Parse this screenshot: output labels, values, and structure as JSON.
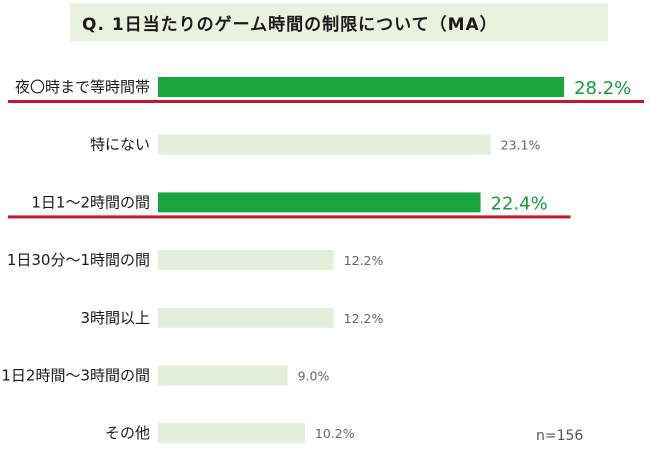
{
  "title": "Q. 1日当たりのゲーム時間の制限について（MA）",
  "sample_size": "n=156",
  "colors": {
    "highlight_bar": "#18a53d",
    "normal_bar": "#e3efdb",
    "underline": "#c0192f",
    "highlight_text": "#1a9a3c",
    "title_bg": "#e8f2df"
  },
  "chart_data": {
    "type": "bar",
    "orientation": "horizontal",
    "title": "Q. 1日当たりのゲーム時間の制限について（MA）",
    "categories": [
      "夜〇時まで等時間帯",
      "特にない",
      "1日1～2時間の間",
      "1日30分～1時間の間",
      "3時間以上",
      "1日2時間～3時間の間",
      "その他"
    ],
    "values": [
      28.2,
      23.1,
      22.4,
      12.2,
      12.2,
      9.0,
      10.2
    ],
    "value_labels": [
      "28.2%",
      "23.1%",
      "22.4%",
      "12.2%",
      "12.2%",
      "9.0%",
      "10.2%"
    ],
    "highlighted": [
      true,
      false,
      true,
      false,
      false,
      false,
      false
    ],
    "unit": "%",
    "xlim": [
      0,
      30
    ]
  }
}
